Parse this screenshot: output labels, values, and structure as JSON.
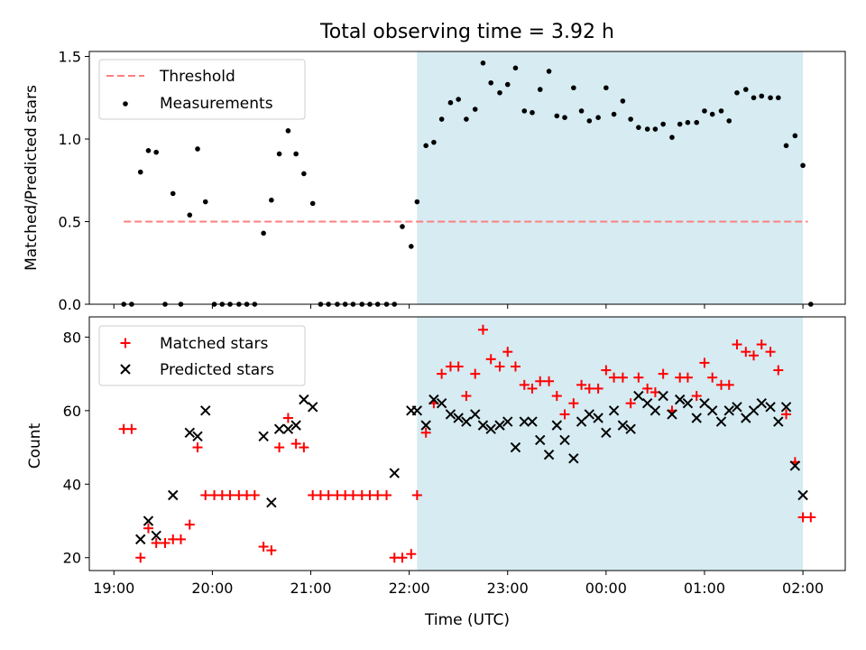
{
  "figure_title": "Total observing time = 3.92 h",
  "colors": {
    "threshold": "#ff7f7f",
    "measurements": "#000000",
    "matched": "#ff0000",
    "predicted": "#000000",
    "observing_window": "#add8e6"
  },
  "chart_data": [
    {
      "type": "scatter",
      "ylabel": "Matched/Predicted stars",
      "ylim": [
        0,
        1.53
      ],
      "yticks": [
        "0.0",
        "0.5",
        "1.0",
        "1.5"
      ],
      "ytick_values": [
        0,
        0.5,
        1.0,
        1.5
      ],
      "xlim": [
        18.75,
        26.43
      ],
      "legend": {
        "placement": "top-left",
        "threshold_label": "Threshold",
        "measurements_label": "Measurements"
      },
      "observing_window": [
        22.08,
        26.0
      ],
      "threshold": {
        "value": 0.5,
        "x": [
          19.1,
          26.05
        ]
      },
      "series": [
        {
          "name": "Measurements",
          "x": [
            19.1,
            19.18,
            19.27,
            19.35,
            19.43,
            19.52,
            19.6,
            19.68,
            19.77,
            19.85,
            19.93,
            20.02,
            20.1,
            20.18,
            20.27,
            20.35,
            20.43,
            20.52,
            20.6,
            20.68,
            20.77,
            20.85,
            20.93,
            21.02,
            21.1,
            21.18,
            21.27,
            21.35,
            21.43,
            21.52,
            21.6,
            21.68,
            21.77,
            21.85,
            21.93,
            22.02,
            22.08,
            22.17,
            22.25,
            22.33,
            22.42,
            22.5,
            22.58,
            22.67,
            22.75,
            22.83,
            22.92,
            23.0,
            23.08,
            23.17,
            23.25,
            23.33,
            23.42,
            23.5,
            23.58,
            23.67,
            23.75,
            23.83,
            23.92,
            24.0,
            24.08,
            24.17,
            24.25,
            24.33,
            24.42,
            24.5,
            24.58,
            24.67,
            24.75,
            24.83,
            24.92,
            25.0,
            25.08,
            25.17,
            25.25,
            25.33,
            25.42,
            25.5,
            25.58,
            25.67,
            25.75,
            25.83,
            25.92,
            26.0,
            26.08
          ],
          "y": [
            0,
            0,
            0.8,
            0.93,
            0.92,
            0,
            0.67,
            0,
            0.54,
            0.94,
            0.62,
            0,
            0,
            0,
            0,
            0,
            0,
            0.43,
            0.63,
            0.91,
            1.05,
            0.91,
            0.79,
            0.61,
            0,
            0,
            0,
            0,
            0,
            0,
            0,
            0,
            0,
            0,
            0.47,
            0.35,
            0.62,
            0.96,
            0.98,
            1.12,
            1.22,
            1.24,
            1.12,
            1.18,
            1.46,
            1.34,
            1.28,
            1.33,
            1.43,
            1.17,
            1.16,
            1.3,
            1.41,
            1.14,
            1.13,
            1.31,
            1.17,
            1.11,
            1.13,
            1.31,
            1.15,
            1.23,
            1.12,
            1.07,
            1.06,
            1.06,
            1.09,
            1.01,
            1.09,
            1.1,
            1.1,
            1.17,
            1.15,
            1.17,
            1.11,
            1.28,
            1.3,
            1.25,
            1.26,
            1.25,
            1.25,
            0.96,
            1.02,
            0.84,
            0
          ]
        }
      ]
    },
    {
      "type": "scatter",
      "ylabel": "Count",
      "xlabel": "Time (UTC)",
      "ylim": [
        16.5,
        85.5
      ],
      "yticks": [
        "20",
        "40",
        "60",
        "80"
      ],
      "ytick_values": [
        20,
        40,
        60,
        80
      ],
      "xlim": [
        18.75,
        26.43
      ],
      "xticks": [
        "19:00",
        "20:00",
        "21:00",
        "22:00",
        "23:00",
        "00:00",
        "01:00",
        "02:00"
      ],
      "xtick_values": [
        19,
        20,
        21,
        22,
        23,
        24,
        25,
        26
      ],
      "legend": {
        "placement": "top-left",
        "matched_label": "Matched stars",
        "predicted_label": "Predicted stars"
      },
      "observing_window": [
        22.08,
        26.0
      ],
      "series": [
        {
          "name": "Matched stars",
          "x": [
            19.1,
            19.18,
            19.27,
            19.35,
            19.43,
            19.52,
            19.6,
            19.68,
            19.77,
            19.85,
            19.93,
            20.02,
            20.1,
            20.18,
            20.27,
            20.35,
            20.43,
            20.52,
            20.6,
            20.68,
            20.77,
            20.85,
            20.93,
            21.02,
            21.1,
            21.18,
            21.27,
            21.35,
            21.43,
            21.52,
            21.6,
            21.68,
            21.77,
            21.85,
            21.93,
            22.02,
            22.08,
            22.17,
            22.25,
            22.33,
            22.42,
            22.5,
            22.58,
            22.67,
            22.75,
            22.83,
            22.92,
            23.0,
            23.08,
            23.17,
            23.25,
            23.33,
            23.42,
            23.5,
            23.58,
            23.67,
            23.75,
            23.83,
            23.92,
            24.0,
            24.08,
            24.17,
            24.25,
            24.33,
            24.42,
            24.5,
            24.58,
            24.67,
            24.75,
            24.83,
            24.92,
            25.0,
            25.08,
            25.17,
            25.25,
            25.33,
            25.42,
            25.5,
            25.58,
            25.67,
            25.75,
            25.83,
            25.92,
            26.0,
            26.08
          ],
          "y": [
            55,
            55,
            20,
            28,
            24,
            24,
            25,
            25,
            29,
            50,
            37,
            37,
            37,
            37,
            37,
            37,
            37,
            23,
            22,
            50,
            58,
            51,
            50,
            37,
            37,
            37,
            37,
            37,
            37,
            37,
            37,
            37,
            37,
            20,
            20,
            21,
            37,
            54,
            62,
            70,
            72,
            72,
            64,
            70,
            82,
            74,
            72,
            76,
            72,
            67,
            66,
            68,
            68,
            64,
            59,
            62,
            67,
            66,
            66,
            71,
            69,
            69,
            62,
            69,
            66,
            65,
            70,
            60,
            69,
            69,
            64,
            73,
            69,
            67,
            67,
            78,
            76,
            75,
            78,
            76,
            71,
            59,
            46,
            31,
            31
          ]
        },
        {
          "name": "Predicted stars",
          "x": [
            19.27,
            19.35,
            19.43,
            19.6,
            19.77,
            19.85,
            19.93,
            20.52,
            20.6,
            20.68,
            20.77,
            20.85,
            20.93,
            21.02,
            21.85,
            22.02,
            22.08,
            22.17,
            22.25,
            22.33,
            22.42,
            22.5,
            22.58,
            22.67,
            22.75,
            22.83,
            22.92,
            23.0,
            23.08,
            23.17,
            23.25,
            23.33,
            23.42,
            23.5,
            23.58,
            23.67,
            23.75,
            23.83,
            23.92,
            24.0,
            24.08,
            24.17,
            24.25,
            24.33,
            24.42,
            24.5,
            24.58,
            24.67,
            24.75,
            24.83,
            24.92,
            25.0,
            25.08,
            25.17,
            25.25,
            25.33,
            25.42,
            25.5,
            25.58,
            25.67,
            25.75,
            25.83,
            25.92,
            26.0
          ],
          "y": [
            25,
            30,
            26,
            37,
            54,
            53,
            60,
            53,
            35,
            55,
            55,
            56,
            63,
            61,
            43,
            60,
            60,
            56,
            63,
            62,
            59,
            58,
            57,
            59,
            56,
            55,
            56,
            57,
            50,
            57,
            57,
            52,
            48,
            56,
            52,
            47,
            57,
            59,
            58,
            54,
            60,
            56,
            55,
            64,
            62,
            60,
            64,
            59,
            63,
            62,
            58,
            62,
            60,
            57,
            60,
            61,
            58,
            60,
            62,
            61,
            57,
            61,
            45,
            37
          ]
        }
      ]
    }
  ]
}
